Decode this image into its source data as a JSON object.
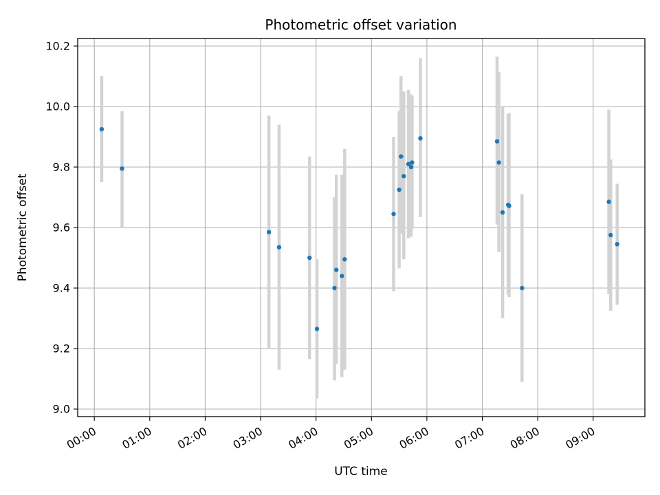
{
  "chart_data": {
    "type": "scatter",
    "title": "Photometric offset variation",
    "xlabel": "UTC time",
    "ylabel": "Photometric offset",
    "xlim": [
      "-00:18",
      "09:56"
    ],
    "ylim": [
      8.975,
      10.225
    ],
    "x_ticks": [
      "00:00",
      "01:00",
      "02:00",
      "03:00",
      "04:00",
      "05:00",
      "06:00",
      "07:00",
      "08:00",
      "09:00"
    ],
    "y_ticks": [
      "9.0",
      "9.2",
      "9.4",
      "9.6",
      "9.8",
      "10.0",
      "10.2"
    ],
    "grid": true,
    "marker_color": "#1f77b4",
    "errorbar_color": "#d3d3d3",
    "points": [
      {
        "x": "00:08",
        "y": 9.925,
        "err": [
          9.75,
          10.1
        ]
      },
      {
        "x": "00:30",
        "y": 9.795,
        "err": [
          9.6,
          9.985
        ]
      },
      {
        "x": "03:09",
        "y": 9.585,
        "err": [
          9.2,
          9.97
        ]
      },
      {
        "x": "03:20",
        "y": 9.535,
        "err": [
          9.13,
          9.94
        ]
      },
      {
        "x": "03:53",
        "y": 9.5,
        "err": [
          9.165,
          9.835
        ]
      },
      {
        "x": "04:01",
        "y": 9.265,
        "err": [
          9.035,
          9.495
        ]
      },
      {
        "x": "04:20",
        "y": 9.4,
        "err": [
          9.095,
          9.7
        ]
      },
      {
        "x": "04:22",
        "y": 9.46,
        "err": [
          9.15,
          9.775
        ]
      },
      {
        "x": "04:28",
        "y": 9.44,
        "err": [
          9.105,
          9.775
        ]
      },
      {
        "x": "04:31",
        "y": 9.495,
        "err": [
          9.13,
          9.86
        ]
      },
      {
        "x": "05:24",
        "y": 9.645,
        "err": [
          9.39,
          9.9
        ]
      },
      {
        "x": "05:30",
        "y": 9.725,
        "err": [
          9.465,
          9.985
        ]
      },
      {
        "x": "05:32",
        "y": 9.835,
        "err": [
          9.58,
          10.1
        ]
      },
      {
        "x": "05:35",
        "y": 9.77,
        "err": [
          9.495,
          10.05
        ]
      },
      {
        "x": "05:40",
        "y": 9.81,
        "err": [
          9.565,
          10.055
        ]
      },
      {
        "x": "05:43",
        "y": 9.8,
        "err": [
          9.57,
          10.04
        ]
      },
      {
        "x": "05:44",
        "y": 9.815,
        "err": [
          9.595,
          10.035
        ]
      },
      {
        "x": "05:53",
        "y": 9.895,
        "err": [
          9.635,
          10.16
        ]
      },
      {
        "x": "07:16",
        "y": 9.885,
        "err": [
          9.61,
          10.165
        ]
      },
      {
        "x": "07:18",
        "y": 9.815,
        "err": [
          9.52,
          10.115
        ]
      },
      {
        "x": "07:22",
        "y": 9.65,
        "err": [
          9.3,
          10.0
        ]
      },
      {
        "x": "07:28",
        "y": 9.675,
        "err": [
          9.38,
          9.975
        ]
      },
      {
        "x": "07:29",
        "y": 9.672,
        "err": [
          9.37,
          9.978
        ]
      },
      {
        "x": "07:43",
        "y": 9.4,
        "err": [
          9.09,
          9.71
        ]
      },
      {
        "x": "09:17",
        "y": 9.685,
        "err": [
          9.38,
          9.99
        ]
      },
      {
        "x": "09:19",
        "y": 9.575,
        "err": [
          9.325,
          9.825
        ]
      },
      {
        "x": "09:26",
        "y": 9.545,
        "err": [
          9.345,
          9.745
        ]
      }
    ]
  }
}
